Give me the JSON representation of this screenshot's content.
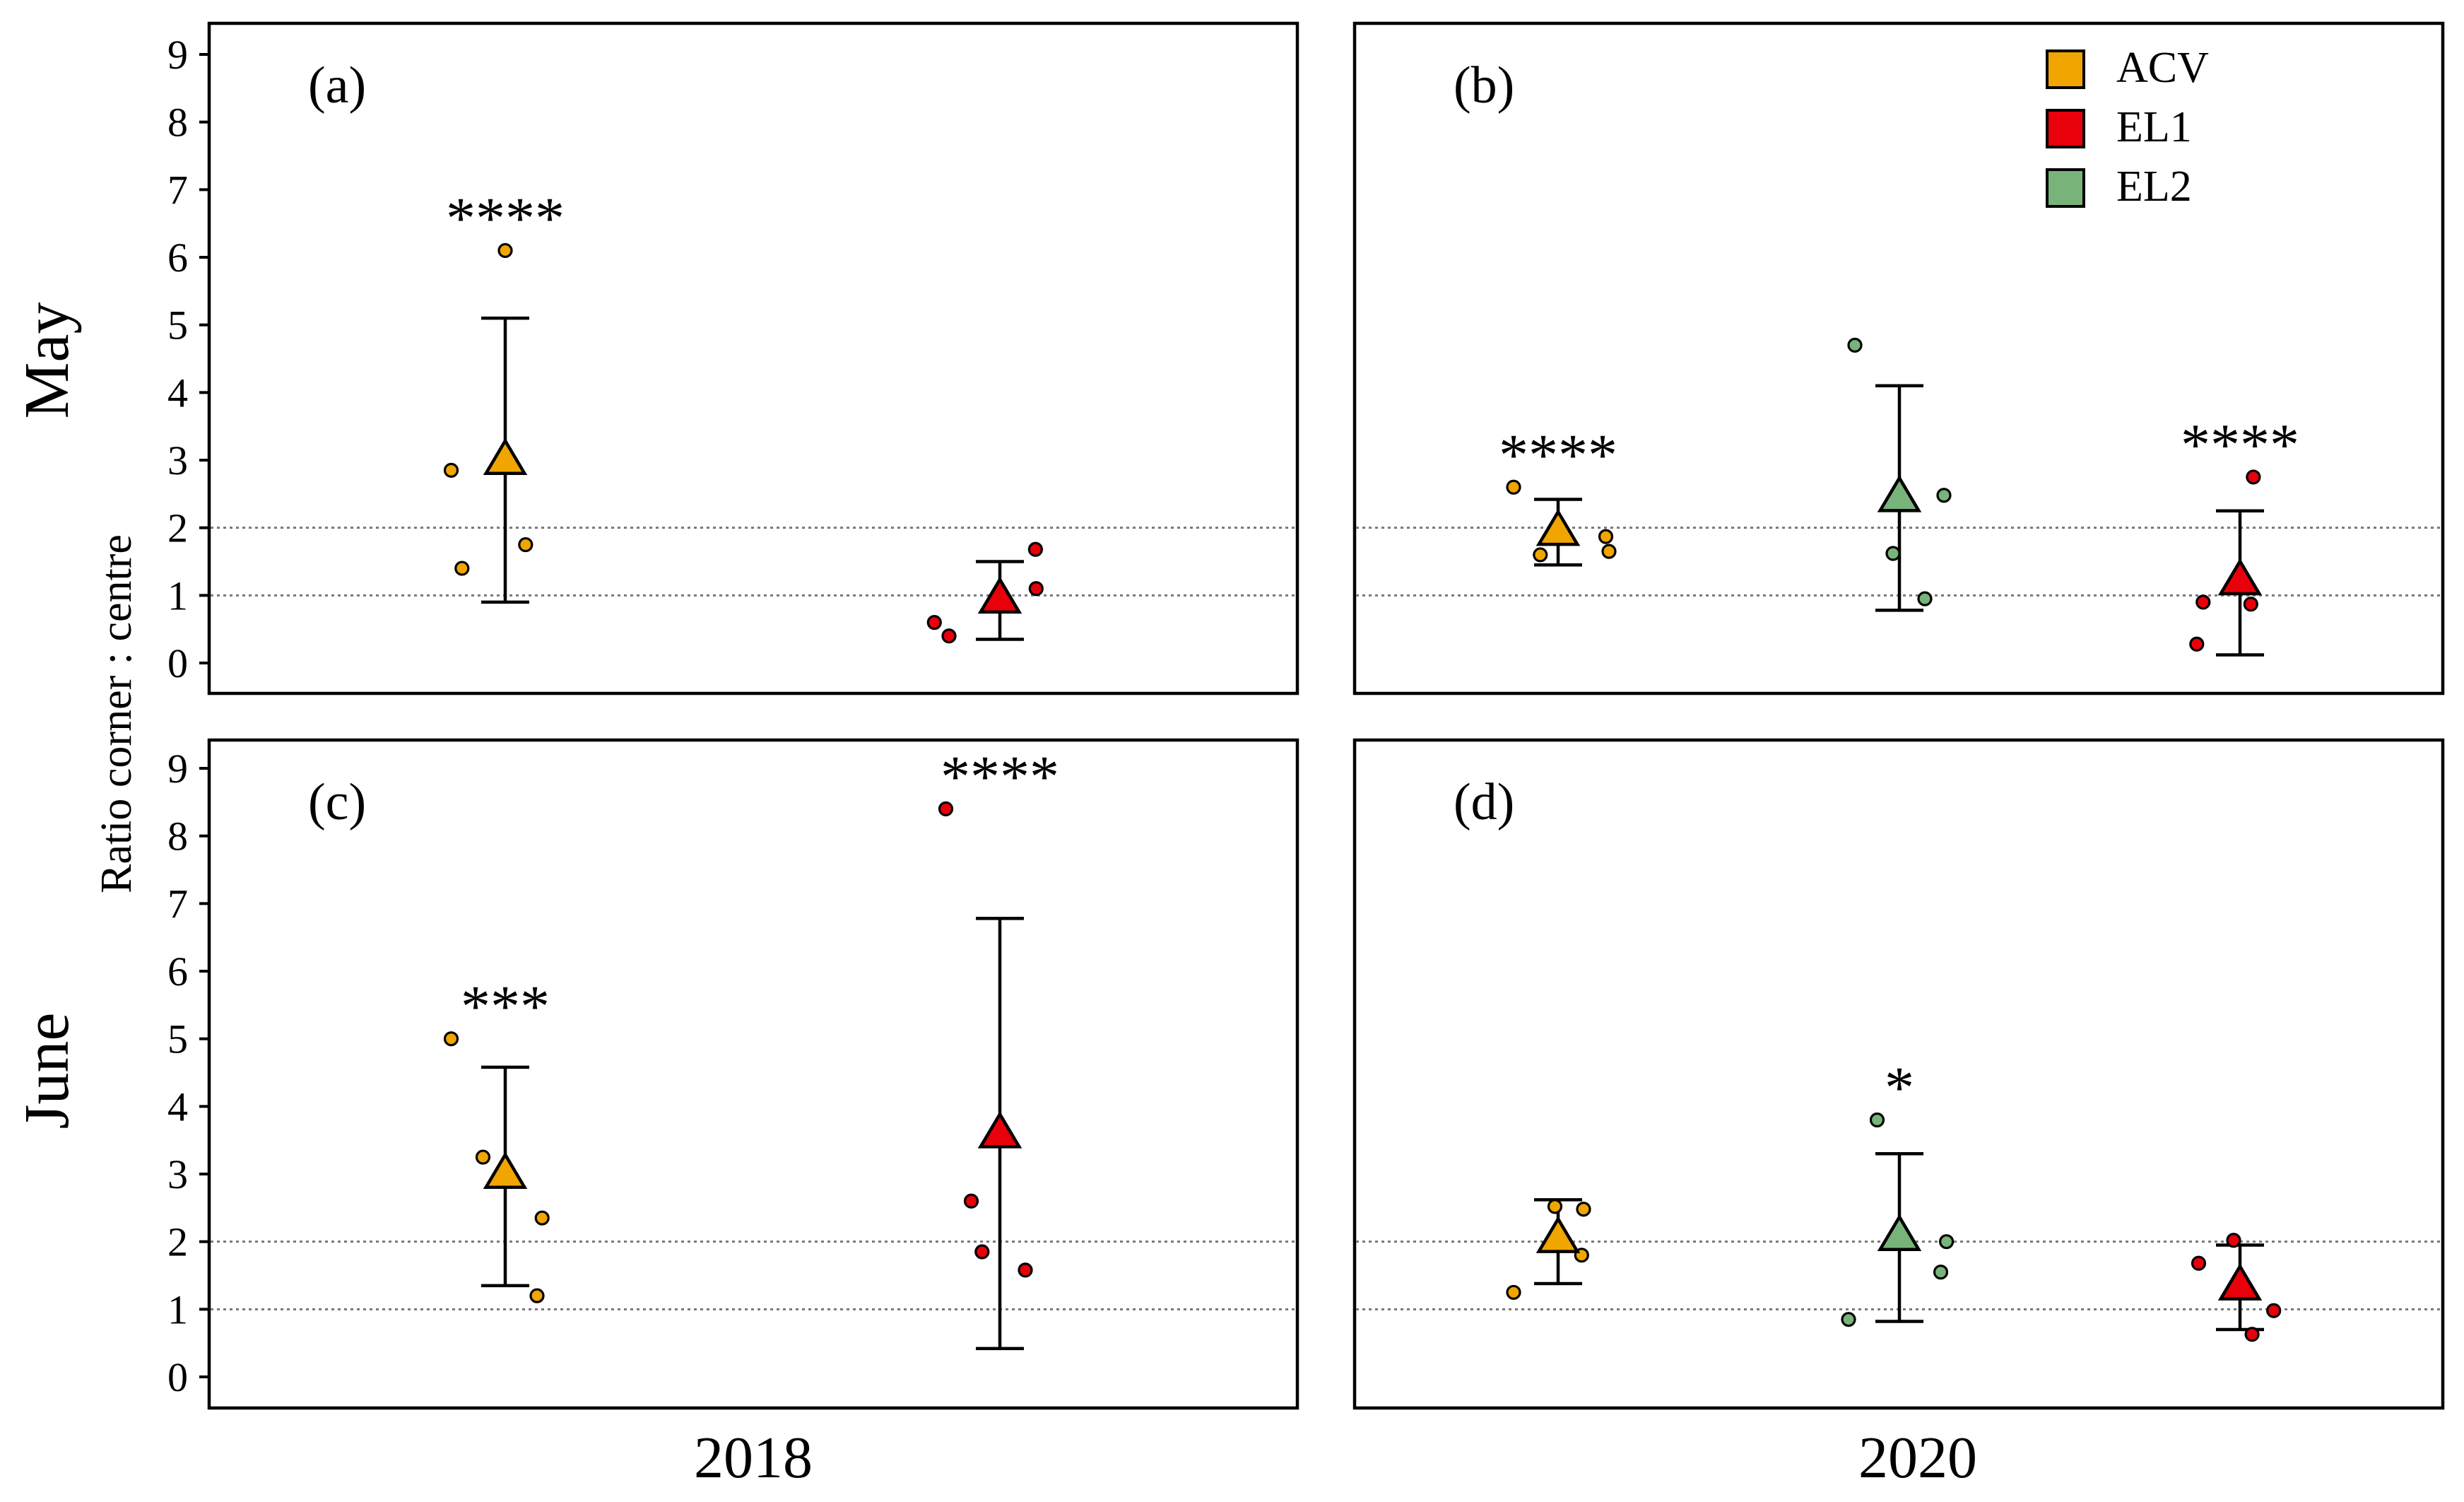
{
  "chart_data": {
    "type": "scatter",
    "ylabel": "Ratio corner : centre",
    "row_labels": [
      "May",
      "June"
    ],
    "column_labels": [
      "2018",
      "2020"
    ],
    "ylim": [
      0,
      9
    ],
    "yticks": [
      0,
      1,
      2,
      3,
      4,
      5,
      6,
      7,
      8,
      9
    ],
    "reference_lines": [
      1,
      2
    ],
    "legend": [
      {
        "name": "ACV",
        "color": "#F0A500"
      },
      {
        "name": "EL1",
        "color": "#E8000B"
      },
      {
        "name": "EL2",
        "color": "#78B47A"
      }
    ],
    "panels": [
      {
        "label": "(a)",
        "row": "May",
        "year": "2018",
        "groups": [
          {
            "name": "ACV",
            "mean": 3.0,
            "err_low": 0.9,
            "err_high": 5.1,
            "sig": "****",
            "points": [
              {
                "offset": -0.085,
                "y": 2.85
              },
              {
                "offset": -0.068,
                "y": 1.4
              },
              {
                "offset": 0.0,
                "y": 6.1
              },
              {
                "offset": 0.032,
                "y": 1.75
              }
            ]
          },
          {
            "name": "EL1",
            "mean": 0.95,
            "err_low": 0.35,
            "err_high": 1.5,
            "sig": "",
            "points": [
              {
                "offset": -0.103,
                "y": 0.6
              },
              {
                "offset": -0.08,
                "y": 0.4
              },
              {
                "offset": 0.057,
                "y": 1.1
              },
              {
                "offset": 0.056,
                "y": 1.68
              }
            ]
          }
        ]
      },
      {
        "label": "(b)",
        "row": "May",
        "year": "2020",
        "groups": [
          {
            "name": "ACV",
            "mean": 1.95,
            "err_low": 1.45,
            "err_high": 2.42,
            "sig": "****",
            "points": [
              {
                "offset": -0.07,
                "y": 2.6
              },
              {
                "offset": -0.028,
                "y": 1.6
              },
              {
                "offset": 0.075,
                "y": 1.87
              },
              {
                "offset": 0.08,
                "y": 1.65
              }
            ]
          },
          {
            "name": "EL2",
            "mean": 2.45,
            "err_low": 0.78,
            "err_high": 4.1,
            "sig": "",
            "points": [
              {
                "offset": -0.07,
                "y": 4.7
              },
              {
                "offset": -0.01,
                "y": 1.62
              },
              {
                "offset": 0.04,
                "y": 0.95
              },
              {
                "offset": 0.07,
                "y": 2.48
              }
            ]
          },
          {
            "name": "EL1",
            "mean": 1.22,
            "err_low": 0.12,
            "err_high": 2.25,
            "sig": "****",
            "points": [
              {
                "offset": -0.068,
                "y": 0.28
              },
              {
                "offset": -0.058,
                "y": 0.9
              },
              {
                "offset": 0.021,
                "y": 2.75
              },
              {
                "offset": 0.017,
                "y": 0.87
              }
            ]
          }
        ]
      },
      {
        "label": "(c)",
        "row": "June",
        "year": "2018",
        "groups": [
          {
            "name": "ACV",
            "mean": 3.0,
            "err_low": 1.35,
            "err_high": 4.58,
            "sig": "***",
            "points": [
              {
                "offset": -0.085,
                "y": 5.0
              },
              {
                "offset": -0.035,
                "y": 3.25
              },
              {
                "offset": 0.058,
                "y": 2.35
              },
              {
                "offset": 0.05,
                "y": 1.2
              }
            ]
          },
          {
            "name": "EL1",
            "mean": 3.6,
            "err_low": 0.42,
            "err_high": 6.78,
            "sig": "****",
            "points": [
              {
                "offset": -0.085,
                "y": 8.4
              },
              {
                "offset": -0.045,
                "y": 2.6
              },
              {
                "offset": -0.028,
                "y": 1.85
              },
              {
                "offset": 0.04,
                "y": 1.58
              }
            ]
          }
        ]
      },
      {
        "label": "(d)",
        "row": "June",
        "year": "2020",
        "groups": [
          {
            "name": "ACV",
            "mean": 2.05,
            "err_low": 1.38,
            "err_high": 2.62,
            "sig": "",
            "points": [
              {
                "offset": -0.07,
                "y": 1.25
              },
              {
                "offset": -0.005,
                "y": 2.52
              },
              {
                "offset": 0.04,
                "y": 2.48
              },
              {
                "offset": 0.037,
                "y": 1.8
              }
            ]
          },
          {
            "name": "EL2",
            "mean": 2.08,
            "err_low": 0.82,
            "err_high": 3.3,
            "sig": "*",
            "points": [
              {
                "offset": -0.08,
                "y": 0.85
              },
              {
                "offset": -0.035,
                "y": 3.8
              },
              {
                "offset": 0.074,
                "y": 2.0
              },
              {
                "offset": 0.065,
                "y": 1.55
              }
            ]
          },
          {
            "name": "EL1",
            "mean": 1.35,
            "err_low": 0.7,
            "err_high": 1.95,
            "sig": "",
            "points": [
              {
                "offset": -0.065,
                "y": 1.68
              },
              {
                "offset": -0.01,
                "y": 2.02
              },
              {
                "offset": 0.019,
                "y": 0.63
              },
              {
                "offset": 0.053,
                "y": 0.98
              }
            ]
          }
        ]
      }
    ]
  }
}
